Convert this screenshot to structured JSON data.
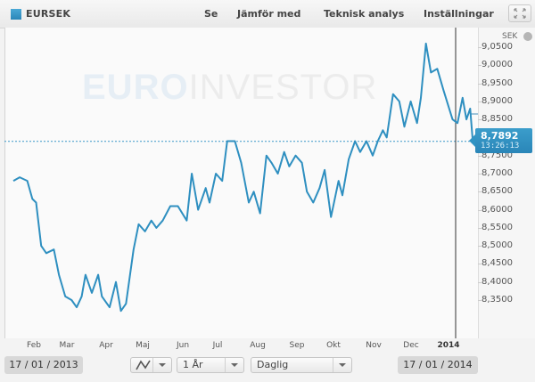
{
  "header": {
    "symbol": "EURSEK",
    "menu": [
      "Se",
      "Jämför med",
      "Teknisk analys",
      "Inställningar"
    ],
    "fullscreen_icon": "expand-icon"
  },
  "watermark": {
    "part1": "EURO",
    "part2": "INVESTOR"
  },
  "y_axis": {
    "unit": "SEK",
    "unit_icon": "wrench-icon",
    "ticks": [
      "9,0500",
      "9,0000",
      "8,9500",
      "8,9000",
      "8,8500",
      "8,7500",
      "8,7000",
      "8,6500",
      "8,6000",
      "8,5500",
      "8,5000",
      "8,4500",
      "8,4000",
      "8,3500"
    ]
  },
  "x_axis": {
    "labels": [
      "Feb",
      "Mar",
      "Apr",
      "Maj",
      "Jun",
      "Jul",
      "Aug",
      "Sep",
      "Okt",
      "Nov",
      "Dec",
      "2014"
    ]
  },
  "current_price": {
    "value": "8,7892",
    "time": "13:26:13"
  },
  "controls": {
    "start_date": "17 / 01 / 2013",
    "end_date": "17 / 01 / 2014",
    "chart_type_icon": "line-chart-icon",
    "period": "1 År",
    "interval": "Daglig"
  },
  "colors": {
    "line": "#2e8fc0",
    "accent": "#2a86b8"
  },
  "chart_data": {
    "type": "line",
    "title": "EURSEK",
    "xlabel": "",
    "ylabel": "SEK",
    "ylim": [
      8.31,
      9.09
    ],
    "grid": false,
    "legend": "none",
    "reference_line": 8.7892,
    "categories": [
      "Feb",
      "Mar",
      "Apr",
      "Maj",
      "Jun",
      "Jul",
      "Aug",
      "Sep",
      "Okt",
      "Nov",
      "Dec",
      "2014"
    ],
    "series": [
      {
        "name": "EURSEK",
        "x": [
          "2013-01-17",
          "2013-01-22",
          "2013-01-28",
          "2013-02-01",
          "2013-02-04",
          "2013-02-08",
          "2013-02-12",
          "2013-02-18",
          "2013-02-22",
          "2013-02-27",
          "2013-03-04",
          "2013-03-08",
          "2013-03-12",
          "2013-03-15",
          "2013-03-20",
          "2013-03-25",
          "2013-03-28",
          "2013-04-03",
          "2013-04-08",
          "2013-04-12",
          "2013-04-16",
          "2013-04-22",
          "2013-04-26",
          "2013-05-01",
          "2013-05-06",
          "2013-05-10",
          "2013-05-15",
          "2013-05-21",
          "2013-05-27",
          "2013-06-03",
          "2013-06-07",
          "2013-06-12",
          "2013-06-18",
          "2013-06-21",
          "2013-06-26",
          "2013-07-01",
          "2013-07-05",
          "2013-07-11",
          "2013-07-16",
          "2013-07-22",
          "2013-07-26",
          "2013-07-31",
          "2013-08-05",
          "2013-08-09",
          "2013-08-14",
          "2013-08-19",
          "2013-08-23",
          "2013-08-28",
          "2013-09-02",
          "2013-09-06",
          "2013-09-11",
          "2013-09-16",
          "2013-09-20",
          "2013-09-25",
          "2013-10-01",
          "2013-10-04",
          "2013-10-09",
          "2013-10-14",
          "2013-10-18",
          "2013-10-23",
          "2013-10-28",
          "2013-11-01",
          "2013-11-05",
          "2013-11-08",
          "2013-11-13",
          "2013-11-18",
          "2013-11-22",
          "2013-11-27",
          "2013-12-02",
          "2013-12-05",
          "2013-12-09",
          "2013-12-13",
          "2013-12-18",
          "2013-12-23",
          "2013-12-30",
          "2014-01-03",
          "2014-01-07",
          "2014-01-10",
          "2014-01-13",
          "2014-01-15",
          "2014-01-17"
        ],
        "values": [
          8.68,
          8.69,
          8.68,
          8.63,
          8.62,
          8.5,
          8.48,
          8.49,
          8.42,
          8.36,
          8.35,
          8.33,
          8.36,
          8.42,
          8.37,
          8.42,
          8.36,
          8.33,
          8.4,
          8.32,
          8.34,
          8.49,
          8.56,
          8.54,
          8.57,
          8.55,
          8.57,
          8.61,
          8.61,
          8.57,
          8.7,
          8.6,
          8.66,
          8.62,
          8.7,
          8.68,
          8.79,
          8.79,
          8.73,
          8.62,
          8.65,
          8.59,
          8.75,
          8.73,
          8.7,
          8.76,
          8.72,
          8.75,
          8.73,
          8.65,
          8.62,
          8.66,
          8.71,
          8.58,
          8.68,
          8.64,
          8.74,
          8.79,
          8.76,
          8.79,
          8.75,
          8.79,
          8.82,
          8.8,
          8.92,
          8.9,
          8.83,
          8.9,
          8.84,
          8.91,
          9.06,
          8.98,
          8.99,
          8.93,
          8.85,
          8.84,
          8.91,
          8.85,
          8.88,
          8.79,
          8.7892
        ]
      }
    ]
  }
}
